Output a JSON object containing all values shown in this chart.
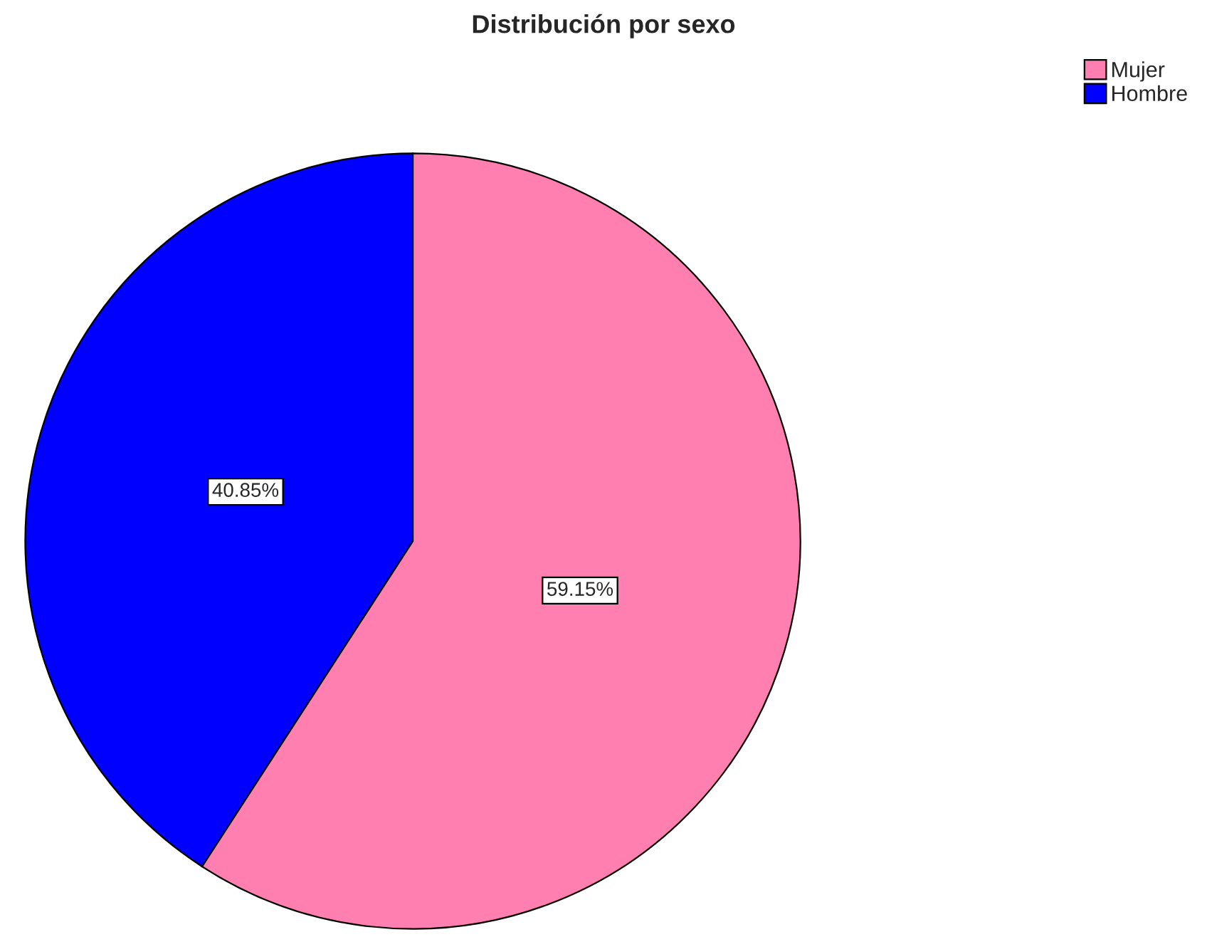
{
  "chart_data": {
    "type": "pie",
    "title": "Distribución por sexo",
    "categories": [
      "Mujer",
      "Hombre"
    ],
    "values": [
      59.15,
      40.85
    ],
    "colors": [
      "#ff80b0",
      "#0000ff"
    ],
    "value_labels": [
      "59.15%",
      "40.85%"
    ],
    "legend": "top right"
  }
}
